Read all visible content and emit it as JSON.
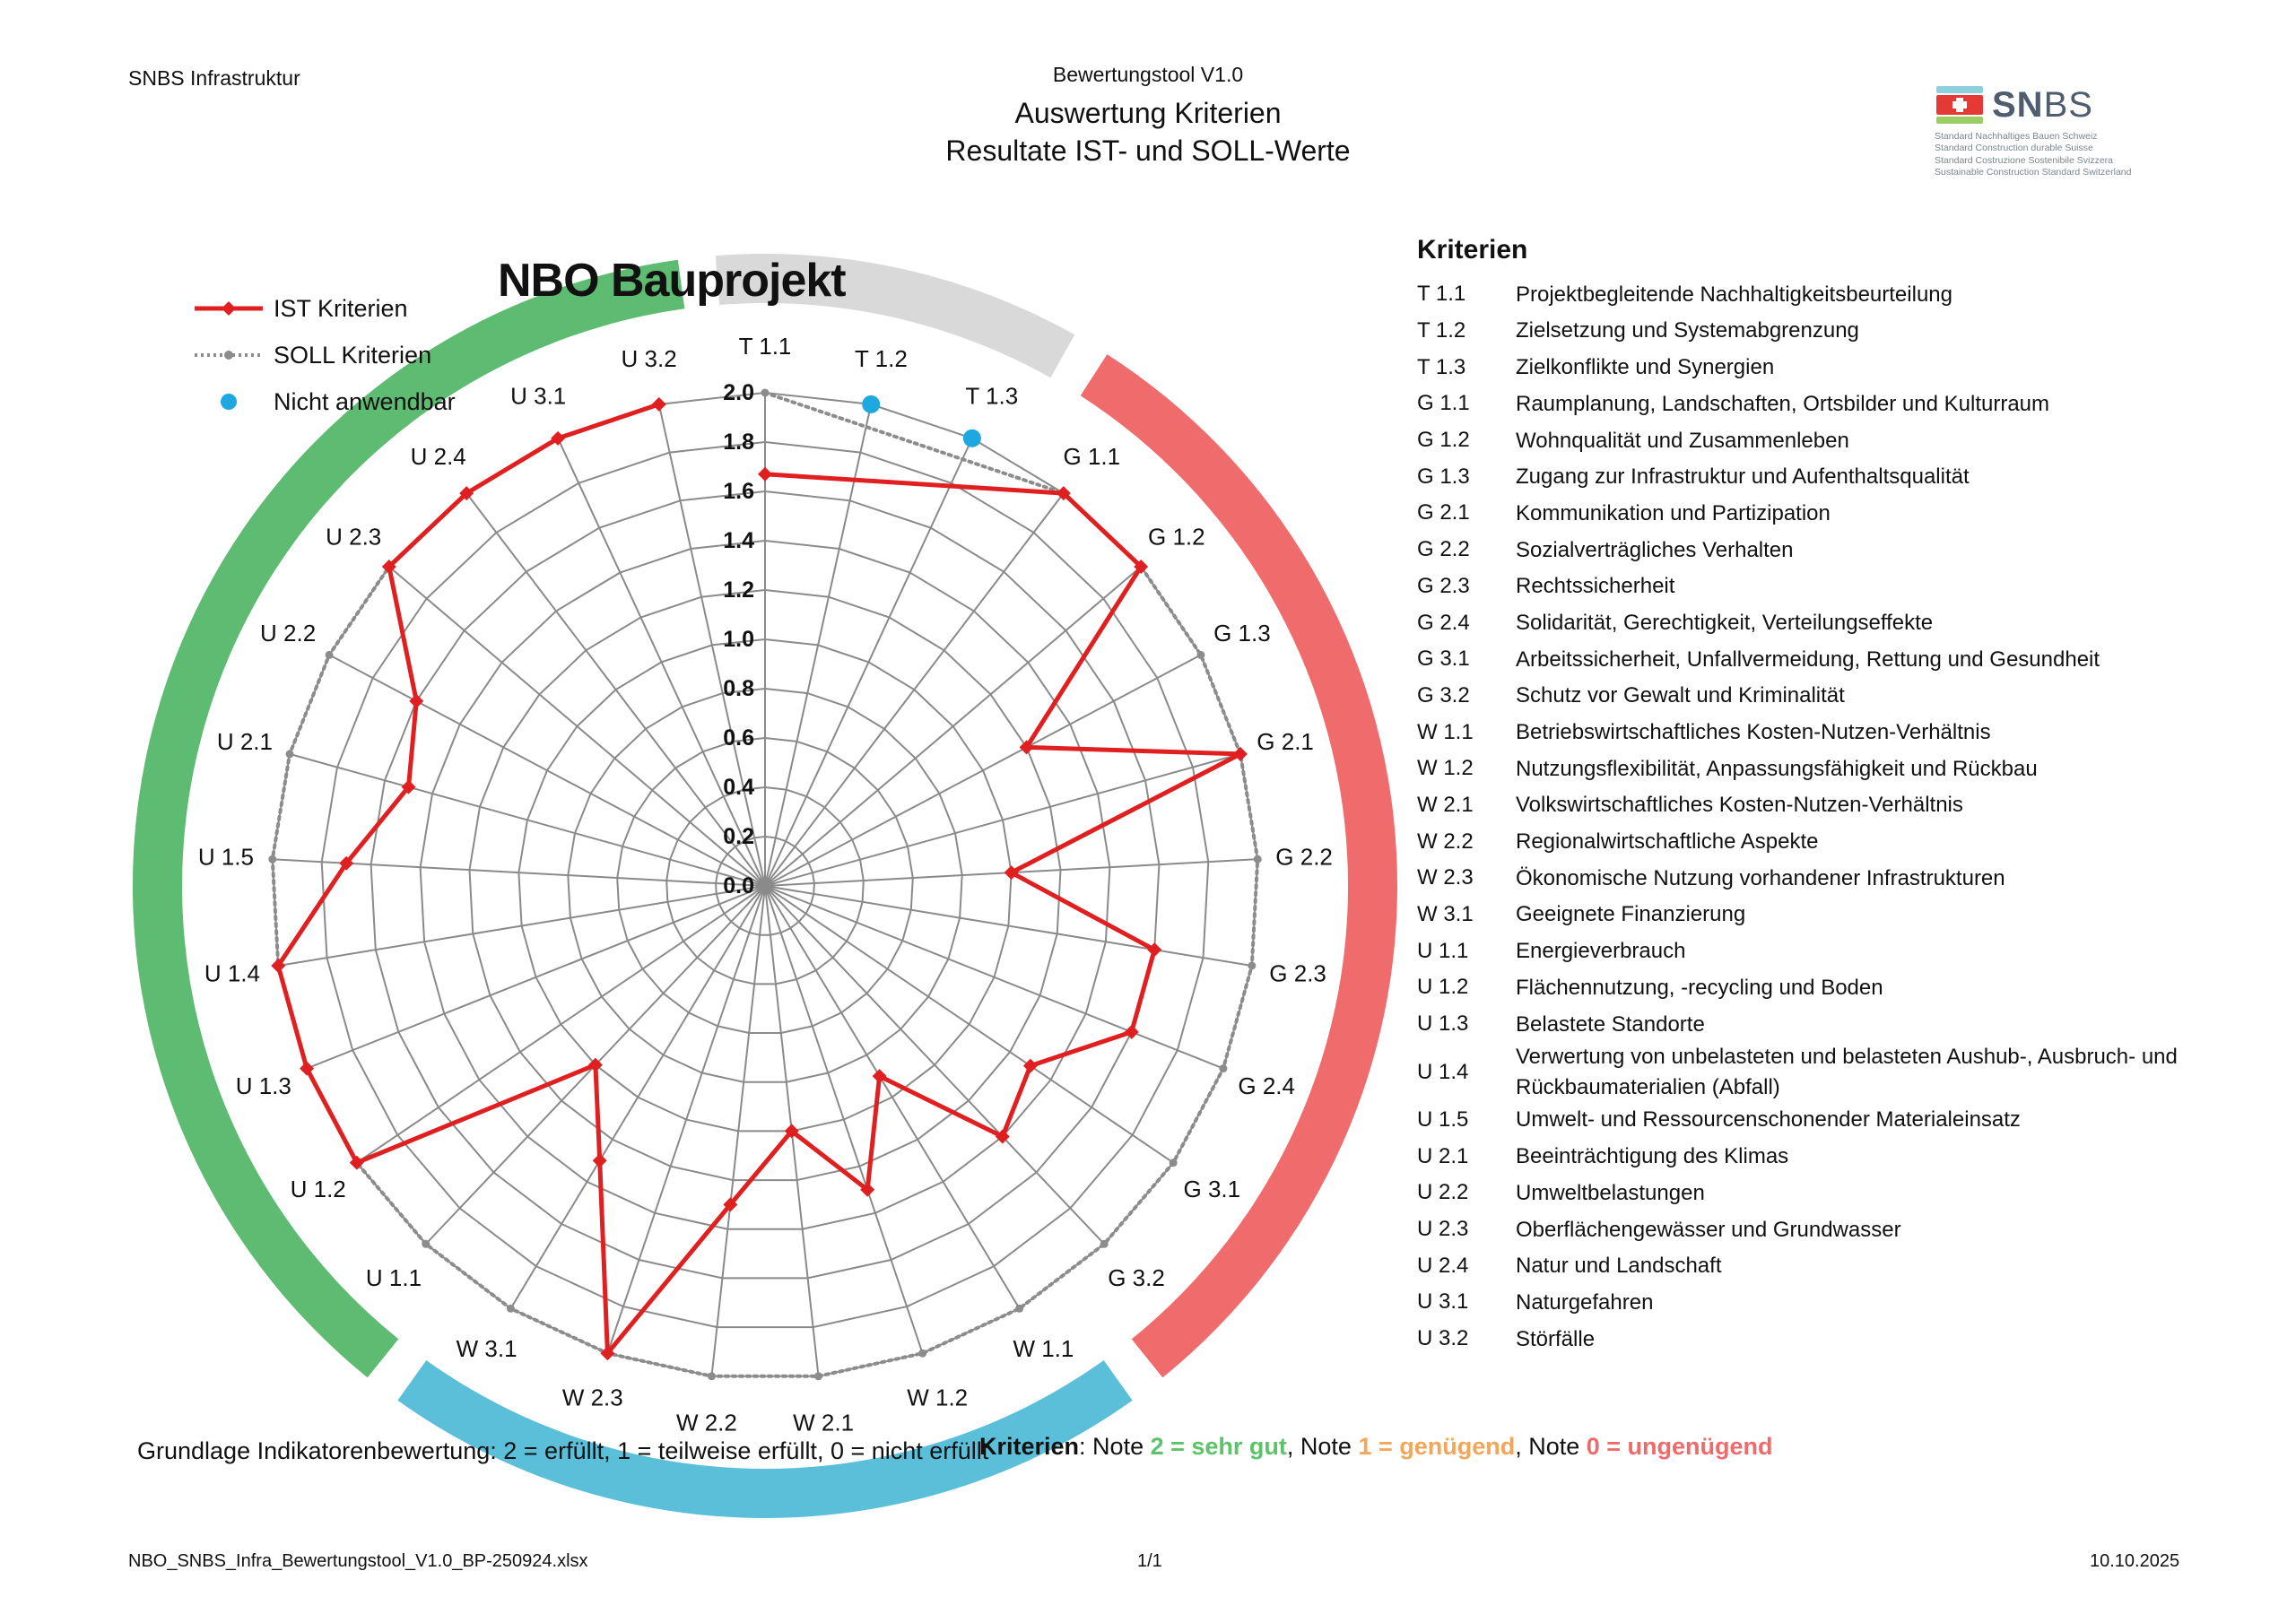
{
  "header": {
    "left": "SNBS Infrastruktur",
    "tool": "Bewertungstool V1.0",
    "title": "Auswertung Kriterien",
    "subtitle": "Resultate IST- und SOLL-Werte"
  },
  "logo": {
    "word_bold": "SN",
    "word_thin": "BS",
    "lines": [
      "Standard Nachhaltiges Bauen Schweiz",
      "Standard Construction durable Suisse",
      "Standard Costruzione Sostenibile Svizzera",
      "Sustainable Construction Standard Switzerland"
    ]
  },
  "legend": {
    "ist": "IST Kriterien",
    "soll": "SOLL Kriterien",
    "na": "Nicht anwendbar"
  },
  "colors": {
    "ist": "#e02020",
    "soll": "#8c8c8c",
    "na": "#1fa8e0",
    "band_T": "#d9d9d9",
    "band_G": "#f06b6b",
    "band_W": "#5bbfda",
    "band_U": "#5dbb72",
    "grid": "#8a8a8a"
  },
  "chart_data": {
    "type": "radar",
    "title": "NBO Bauprojekt",
    "rlim": [
      0,
      2
    ],
    "ticks": [
      "0.0",
      "0.2",
      "0.4",
      "0.6",
      "0.8",
      "1.0",
      "1.2",
      "1.4",
      "1.6",
      "1.8",
      "2.0"
    ],
    "categories": [
      "T 1.1",
      "T 1.2",
      "T 1.3",
      "G 1.1",
      "G 1.2",
      "G 1.3",
      "G 2.1",
      "G 2.2",
      "G 2.3",
      "G 2.4",
      "G 3.1",
      "G 3.2",
      "W 1.1",
      "W 1.2",
      "W 2.1",
      "W 2.2",
      "W 2.3",
      "W 3.1",
      "U 1.1",
      "U 1.2",
      "U 1.3",
      "U 1.4",
      "U 1.5",
      "U 2.1",
      "U 2.2",
      "U 2.3",
      "U 2.4",
      "U 3.1",
      "U 3.2"
    ],
    "series": [
      {
        "name": "IST Kriterien",
        "values": [
          1.67,
          null,
          null,
          2.0,
          2.0,
          1.2,
          2.0,
          1.0,
          1.6,
          1.6,
          1.3,
          1.4,
          0.9,
          1.3,
          1.0,
          1.3,
          2.0,
          1.3,
          1.0,
          2.0,
          2.0,
          2.0,
          1.7,
          1.5,
          1.6,
          2.0,
          2.0,
          2.0,
          2.0
        ]
      },
      {
        "name": "SOLL Kriterien",
        "values": [
          2.0,
          null,
          null,
          2.0,
          2.0,
          2.0,
          2.0,
          2.0,
          2.0,
          2.0,
          2.0,
          2.0,
          2.0,
          2.0,
          2.0,
          2.0,
          2.0,
          2.0,
          2.0,
          2.0,
          2.0,
          2.0,
          2.0,
          2.0,
          2.0,
          2.0,
          2.0,
          2.0,
          2.0
        ]
      },
      {
        "name": "Nicht anwendbar",
        "values": [
          null,
          2.0,
          2.0,
          null,
          null,
          null,
          null,
          null,
          null,
          null,
          null,
          null,
          null,
          null,
          null,
          null,
          null,
          null,
          null,
          null,
          null,
          null,
          null,
          null,
          null,
          null,
          null,
          null,
          null
        ]
      }
    ],
    "groups": [
      {
        "name": "T",
        "from": 0,
        "to": 2,
        "color": "#d9d9d9"
      },
      {
        "name": "G",
        "from": 3,
        "to": 11,
        "color": "#f06b6b"
      },
      {
        "name": "W",
        "from": 12,
        "to": 17,
        "color": "#5bbfda"
      },
      {
        "name": "U",
        "from": 18,
        "to": 28,
        "color": "#5dbb72"
      }
    ]
  },
  "criteria": {
    "heading": "Kriterien",
    "items": [
      {
        "code": "T 1.1",
        "label": "Projektbegleitende Nachhaltigkeitsbeurteilung"
      },
      {
        "code": "T 1.2",
        "label": "Zielsetzung und Systemabgrenzung"
      },
      {
        "code": "T 1.3",
        "label": "Zielkonflikte und Synergien"
      },
      {
        "code": "G 1.1",
        "label": "Raumplanung, Landschaften, Ortsbilder und Kulturraum"
      },
      {
        "code": "G 1.2",
        "label": "Wohnqualität und Zusammenleben"
      },
      {
        "code": "G 1.3",
        "label": "Zugang zur Infrastruktur und Aufenthaltsqualität"
      },
      {
        "code": "G 2.1",
        "label": "Kommunikation und Partizipation"
      },
      {
        "code": "G 2.2",
        "label": "Sozialverträgliches Verhalten"
      },
      {
        "code": "G 2.3",
        "label": "Rechtssicherheit"
      },
      {
        "code": "G 2.4",
        "label": "Solidarität, Gerechtigkeit, Verteilungseffekte"
      },
      {
        "code": "G 3.1",
        "label": "Arbeitssicherheit, Unfallvermeidung, Rettung und Gesundheit"
      },
      {
        "code": "G 3.2",
        "label": "Schutz vor Gewalt und Kriminalität"
      },
      {
        "code": "W 1.1",
        "label": "Betriebswirtschaftliches Kosten-Nutzen-Verhältnis"
      },
      {
        "code": "W 1.2",
        "label": "Nutzungsflexibilität, Anpassungsfähigkeit und Rückbau"
      },
      {
        "code": "W 2.1",
        "label": "Volkswirtschaftliches Kosten-Nutzen-Verhältnis"
      },
      {
        "code": "W 2.2",
        "label": "Regionalwirtschaftliche Aspekte"
      },
      {
        "code": "W 2.3",
        "label": "Ökonomische Nutzung vorhandener Infrastrukturen"
      },
      {
        "code": "W 3.1",
        "label": "Geeignete Finanzierung"
      },
      {
        "code": "U 1.1",
        "label": "Energieverbrauch"
      },
      {
        "code": "U 1.2",
        "label": "Flächennutzung, -recycling und Boden"
      },
      {
        "code": "U 1.3",
        "label": "Belastete Standorte"
      },
      {
        "code": "U 1.4",
        "label": "Verwertung von unbelasteten und belasteten Aushub-, Ausbruch- und Rückbaumaterialien (Abfall)"
      },
      {
        "code": "U 1.5",
        "label": "Umwelt- und Ressourcenschonender Materialeinsatz"
      },
      {
        "code": "U 2.1",
        "label": "Beeinträchtigung des Klimas"
      },
      {
        "code": "U 2.2",
        "label": "Umweltbelastungen"
      },
      {
        "code": "U 2.3",
        "label": "Oberflächengewässer und Grundwasser"
      },
      {
        "code": "U 2.4",
        "label": "Natur und Landschaft"
      },
      {
        "code": "U 3.1",
        "label": "Naturgefahren"
      },
      {
        "code": "U 3.2",
        "label": "Störfälle"
      }
    ]
  },
  "notes": {
    "basis": "Grundlage Indikatorenbewertung: 2 = erfüllt, 1 = teilweise erfüllt, 0 = nicht erfüllt",
    "label": "Kriterien",
    "sep1": ": Note ",
    "good": "2 = sehr gut",
    "sep2": ", Note ",
    "ok": "1 = genügend",
    "sep3": ", Note ",
    "bad": "0 = ungenügend"
  },
  "footer": {
    "file": "NBO_SNBS_Infra_Bewertungstool_V1.0_BP-250924.xlsx",
    "page": "1/1",
    "date": "10.10.2025"
  }
}
